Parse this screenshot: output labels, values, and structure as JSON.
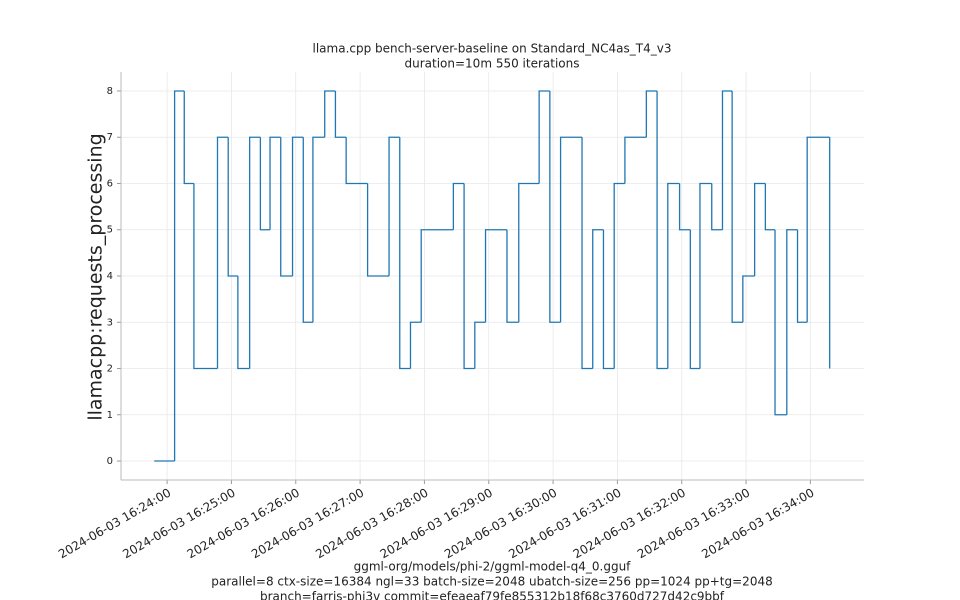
{
  "chart_data": {
    "type": "step",
    "title": [
      "llama.cpp bench-server-baseline on Standard_NC4as_T4_v3",
      "duration=10m 550 iterations"
    ],
    "y_label": "llamacpp:requests_processing",
    "x_label": [
      "ggml-org/models/phi-2/ggml-model-q4_0.gguf",
      "parallel=8 ctx-size=16384 ngl=33 batch-size=2048 ubatch-size=256 pp=1024 pp+tg=2048",
      "branch=farris-phi3v commit=efeaeaf79fe855312b18f68c3760d727d42c9bbf"
    ],
    "x": [
      "2024-06-03 16:23:48",
      "2024-06-03 16:24:07",
      "2024-06-03 16:24:16",
      "2024-06-03 16:24:25",
      "2024-06-03 16:24:47",
      "2024-06-03 16:24:57",
      "2024-06-03 16:25:06",
      "2024-06-03 16:25:17",
      "2024-06-03 16:25:27",
      "2024-06-03 16:25:36",
      "2024-06-03 16:25:46",
      "2024-06-03 16:25:57",
      "2024-06-03 16:26:07",
      "2024-06-03 16:26:16",
      "2024-06-03 16:26:27",
      "2024-06-03 16:26:37",
      "2024-06-03 16:26:47",
      "2024-06-03 16:27:07",
      "2024-06-03 16:27:27",
      "2024-06-03 16:27:37",
      "2024-06-03 16:27:47",
      "2024-06-03 16:27:57",
      "2024-06-03 16:28:27",
      "2024-06-03 16:28:37",
      "2024-06-03 16:28:47",
      "2024-06-03 16:28:57",
      "2024-06-03 16:29:17",
      "2024-06-03 16:29:28",
      "2024-06-03 16:29:47",
      "2024-06-03 16:29:57",
      "2024-06-03 16:30:07",
      "2024-06-03 16:30:27",
      "2024-06-03 16:30:37",
      "2024-06-03 16:30:47",
      "2024-06-03 16:30:57",
      "2024-06-03 16:31:07",
      "2024-06-03 16:31:27",
      "2024-06-03 16:31:37",
      "2024-06-03 16:31:47",
      "2024-06-03 16:31:58",
      "2024-06-03 16:32:08",
      "2024-06-03 16:32:17",
      "2024-06-03 16:32:28",
      "2024-06-03 16:32:38",
      "2024-06-03 16:32:47",
      "2024-06-03 16:32:57",
      "2024-06-03 16:33:08",
      "2024-06-03 16:33:18",
      "2024-06-03 16:33:27",
      "2024-06-03 16:33:38",
      "2024-06-03 16:33:48",
      "2024-06-03 16:33:57",
      "2024-06-03 16:34:18"
    ],
    "values": [
      0,
      8,
      6,
      2,
      7,
      4,
      2,
      7,
      5,
      7,
      4,
      7,
      3,
      7,
      8,
      7,
      6,
      4,
      7,
      2,
      3,
      5,
      6,
      2,
      3,
      5,
      3,
      6,
      8,
      3,
      7,
      2,
      5,
      2,
      6,
      7,
      8,
      2,
      6,
      5,
      2,
      6,
      5,
      8,
      3,
      4,
      6,
      5,
      1,
      5,
      3,
      7,
      2
    ],
    "color": "#1f77b4",
    "xlim": [
      "2024-06-03 16:23:17",
      "2024-06-03 16:34:50"
    ],
    "xticks": [
      "2024-06-03 16:24:00",
      "2024-06-03 16:25:00",
      "2024-06-03 16:26:00",
      "2024-06-03 16:27:00",
      "2024-06-03 16:28:00",
      "2024-06-03 16:29:00",
      "2024-06-03 16:30:00",
      "2024-06-03 16:31:00",
      "2024-06-03 16:32:00",
      "2024-06-03 16:33:00",
      "2024-06-03 16:34:00"
    ],
    "ylim": [
      -0.41,
      8.41
    ],
    "yticks": [
      0,
      1,
      2,
      3,
      4,
      5,
      6,
      7,
      8
    ],
    "grid": true
  }
}
